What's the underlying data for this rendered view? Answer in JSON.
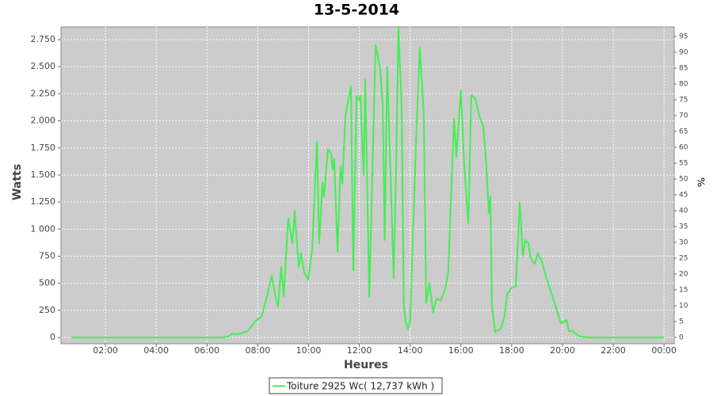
{
  "chart_data": {
    "type": "line",
    "title": "13-5-2014",
    "x_label": "Heures",
    "y_label": "Watts",
    "y2_label": "%",
    "x": [
      0.66,
      6.6,
      6.85,
      6.99,
      7.21,
      7.61,
      7.9,
      8.14,
      8.33,
      8.55,
      8.68,
      8.8,
      8.92,
      9.02,
      9.2,
      9.36,
      9.45,
      9.61,
      9.7,
      9.83,
      9.98,
      10.14,
      10.33,
      10.42,
      10.55,
      10.61,
      10.76,
      10.89,
      10.95,
      11.01,
      11.14,
      11.26,
      11.33,
      11.45,
      11.67,
      11.76,
      11.89,
      11.98,
      12.04,
      12.17,
      12.23,
      12.39,
      12.64,
      12.82,
      12.92,
      13.0,
      13.1,
      13.23,
      13.35,
      13.45,
      13.54,
      13.67,
      13.75,
      13.82,
      13.92,
      14.0,
      14.23,
      14.38,
      14.54,
      14.63,
      14.76,
      14.91,
      15.04,
      15.2,
      15.38,
      15.5,
      15.63,
      15.73,
      15.82,
      16.0,
      16.13,
      16.29,
      16.41,
      16.57,
      16.72,
      16.88,
      17.0,
      17.1,
      17.16,
      17.22,
      17.35,
      17.57,
      17.72,
      17.82,
      18.0,
      18.16,
      18.25,
      18.32,
      18.44,
      18.53,
      18.66,
      18.75,
      18.91,
      19.03,
      19.19,
      19.38,
      19.6,
      19.75,
      19.94,
      20.16,
      20.25,
      20.4,
      20.59,
      20.78,
      21.1,
      24.0
    ],
    "series": [
      {
        "name": "Toiture 2925 Wc( 12,737 kWh )",
        "color": "#44ee55",
        "values": [
          0,
          0,
          10,
          35,
          30,
          60,
          150,
          190,
          350,
          570,
          400,
          280,
          650,
          380,
          1100,
          870,
          1170,
          650,
          780,
          600,
          530,
          800,
          1810,
          870,
          1430,
          1300,
          1740,
          1700,
          1550,
          1650,
          790,
          1580,
          1420,
          2050,
          2320,
          620,
          2230,
          2190,
          2230,
          1500,
          2380,
          370,
          2700,
          2480,
          2150,
          900,
          2500,
          1500,
          550,
          1600,
          2870,
          2100,
          300,
          150,
          80,
          150,
          1800,
          2680,
          2050,
          320,
          500,
          230,
          360,
          340,
          450,
          600,
          1400,
          2020,
          1670,
          2280,
          1600,
          1050,
          2240,
          2200,
          2050,
          1950,
          1600,
          1150,
          1300,
          300,
          50,
          80,
          200,
          400,
          460,
          470,
          900,
          1250,
          750,
          900,
          870,
          730,
          680,
          780,
          700,
          540,
          380,
          270,
          130,
          160,
          60,
          60,
          20,
          5,
          0,
          0
        ]
      }
    ],
    "xlim": [
      0.25,
      24.4
    ],
    "xticks": [
      {
        "value": 2,
        "label": "02:00"
      },
      {
        "value": 4,
        "label": "04:00"
      },
      {
        "value": 6,
        "label": "06:00"
      },
      {
        "value": 8,
        "label": "08:00"
      },
      {
        "value": 10,
        "label": "10:00"
      },
      {
        "value": 12,
        "label": "12:00"
      },
      {
        "value": 14,
        "label": "14:00"
      },
      {
        "value": 16,
        "label": "16:00"
      },
      {
        "value": 18,
        "label": "18:00"
      },
      {
        "value": 20,
        "label": "20:00"
      },
      {
        "value": 22,
        "label": "22:00"
      },
      {
        "value": 24,
        "label": "00:00"
      }
    ],
    "ylim": [
      -58,
      2867
    ],
    "yticks": [
      0,
      250,
      500,
      750,
      {
        "value": 1000,
        "label": "1 000"
      },
      {
        "value": 1250,
        "label": "1.250"
      },
      {
        "value": 1500,
        "label": "1.500"
      },
      {
        "value": 1750,
        "label": "1.750"
      },
      {
        "value": 2000,
        "label": "2.000"
      },
      {
        "value": 2250,
        "label": "2.250"
      },
      {
        "value": 2500,
        "label": "2.500"
      },
      {
        "value": 2750,
        "label": "2.750"
      }
    ],
    "y2lim": [
      -2,
      98
    ],
    "y2ticks": [
      0,
      5,
      10,
      15,
      20,
      25,
      30,
      35,
      40,
      45,
      50,
      55,
      60,
      65,
      70,
      75,
      80,
      85,
      90,
      95
    ],
    "grid": true
  }
}
